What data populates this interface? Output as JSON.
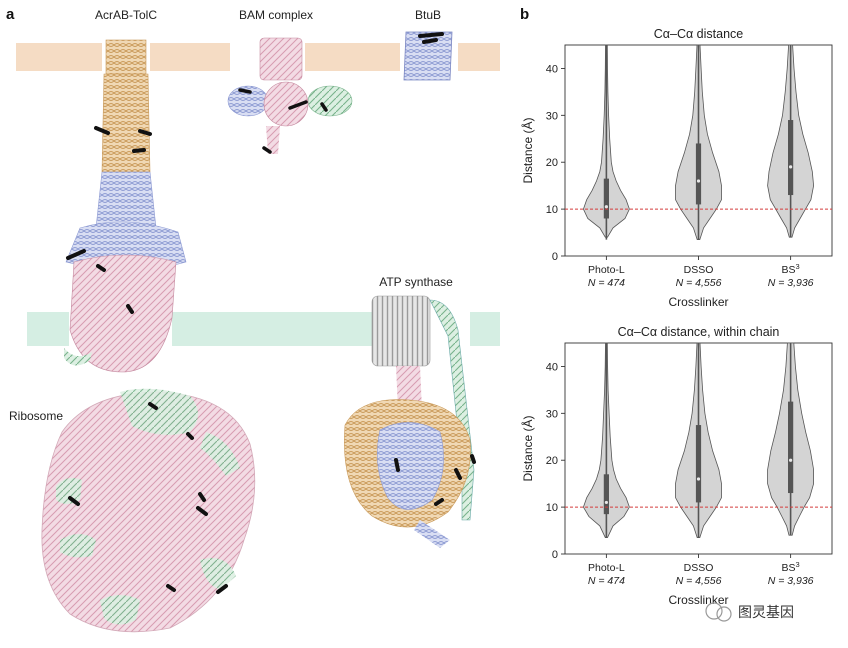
{
  "panel_a": {
    "letter": "a",
    "structures": [
      "AcrAB-TolC",
      "BAM complex",
      "BtuB",
      "ATP synthase",
      "Ribosome"
    ]
  },
  "panel_b": {
    "letter": "b"
  },
  "chart_data": [
    {
      "type": "violin",
      "title": "Cα–Cα distance",
      "xlabel": "Crosslinker",
      "ylabel": "Distance (Å)",
      "ylim": [
        0,
        45
      ],
      "yticks": [
        0,
        10,
        20,
        30,
        40
      ],
      "threshold": 10,
      "categories": [
        "Photo-L",
        "DSSO",
        "BS3"
      ],
      "n_labels": [
        "N = 474",
        "N = 4,556",
        "N = 3,936"
      ],
      "series": [
        {
          "median": 10.5,
          "q1": 8,
          "q3": 16.5,
          "whisker_low": 3.5,
          "whisker_high": 28,
          "max": 45,
          "profile": [
            [
              4,
              1
            ],
            [
              6,
              6
            ],
            [
              8,
              17
            ],
            [
              10,
              21
            ],
            [
              12,
              18
            ],
            [
              14,
              13
            ],
            [
              16,
              9
            ],
            [
              18,
              6
            ],
            [
              20,
              4.5
            ],
            [
              25,
              3
            ],
            [
              30,
              2
            ],
            [
              35,
              1.4
            ],
            [
              40,
              1
            ],
            [
              45,
              0.8
            ]
          ]
        },
        {
          "median": 16,
          "q1": 11,
          "q3": 24,
          "whisker_low": 3.5,
          "whisker_high": 40,
          "max": 45,
          "profile": [
            [
              3.5,
              1
            ],
            [
              6,
              4
            ],
            [
              8,
              9
            ],
            [
              10,
              14
            ],
            [
              12,
              18
            ],
            [
              15,
              18
            ],
            [
              18,
              16
            ],
            [
              22,
              11
            ],
            [
              26,
              7
            ],
            [
              30,
              4.5
            ],
            [
              35,
              3
            ],
            [
              40,
              2
            ],
            [
              45,
              1.2
            ]
          ]
        },
        {
          "median": 19,
          "q1": 13,
          "q3": 29,
          "whisker_low": 4,
          "whisker_high": 43,
          "max": 45,
          "profile": [
            [
              4,
              1
            ],
            [
              6,
              3
            ],
            [
              8,
              7
            ],
            [
              10,
              11
            ],
            [
              12,
              15
            ],
            [
              15,
              17
            ],
            [
              18,
              16
            ],
            [
              22,
              13
            ],
            [
              26,
              9
            ],
            [
              30,
              6
            ],
            [
              35,
              4
            ],
            [
              40,
              2.5
            ],
            [
              45,
              1.5
            ]
          ]
        }
      ]
    },
    {
      "type": "violin",
      "title": "Cα–Cα distance, within chain",
      "xlabel": "Crosslinker",
      "ylabel": "Distance (Å)",
      "ylim": [
        0,
        45
      ],
      "yticks": [
        0,
        10,
        20,
        30,
        40
      ],
      "threshold": 10,
      "categories": [
        "Photo-L",
        "DSSO",
        "BS3"
      ],
      "n_labels": [
        "N = 474",
        "N = 4,556",
        "N = 3,936"
      ],
      "series": [
        {
          "median": 11,
          "q1": 8.5,
          "q3": 17,
          "whisker_low": 3.5,
          "whisker_high": 29,
          "max": 45,
          "profile": [
            [
              3.5,
              1
            ],
            [
              6,
              6
            ],
            [
              8,
              16
            ],
            [
              10,
              21
            ],
            [
              12,
              18
            ],
            [
              14,
              13
            ],
            [
              16,
              9
            ],
            [
              18,
              6.5
            ],
            [
              20,
              5
            ],
            [
              25,
              3.5
            ],
            [
              30,
              2.5
            ],
            [
              35,
              1.6
            ],
            [
              40,
              1.1
            ],
            [
              45,
              0.8
            ]
          ]
        },
        {
          "median": 16,
          "q1": 11,
          "q3": 27.5,
          "whisker_low": 3.5,
          "whisker_high": 42,
          "max": 45,
          "profile": [
            [
              3.5,
              1
            ],
            [
              6,
              4
            ],
            [
              8,
              9
            ],
            [
              10,
              14
            ],
            [
              12,
              18
            ],
            [
              15,
              18
            ],
            [
              18,
              16
            ],
            [
              22,
              11
            ],
            [
              26,
              7.5
            ],
            [
              30,
              5
            ],
            [
              35,
              3.2
            ],
            [
              40,
              2
            ],
            [
              45,
              1.2
            ]
          ]
        },
        {
          "median": 20,
          "q1": 13,
          "q3": 32.5,
          "whisker_low": 4,
          "whisker_high": 44,
          "max": 45,
          "profile": [
            [
              4,
              1
            ],
            [
              6,
              2.5
            ],
            [
              8,
              5.5
            ],
            [
              10,
              8.5
            ],
            [
              12,
              12
            ],
            [
              15,
              14.5
            ],
            [
              18,
              14.5
            ],
            [
              22,
              12.5
            ],
            [
              26,
              9.5
            ],
            [
              30,
              7
            ],
            [
              35,
              4.5
            ],
            [
              40,
              3
            ],
            [
              45,
              2
            ]
          ]
        }
      ]
    }
  ],
  "watermark": "图灵基因"
}
